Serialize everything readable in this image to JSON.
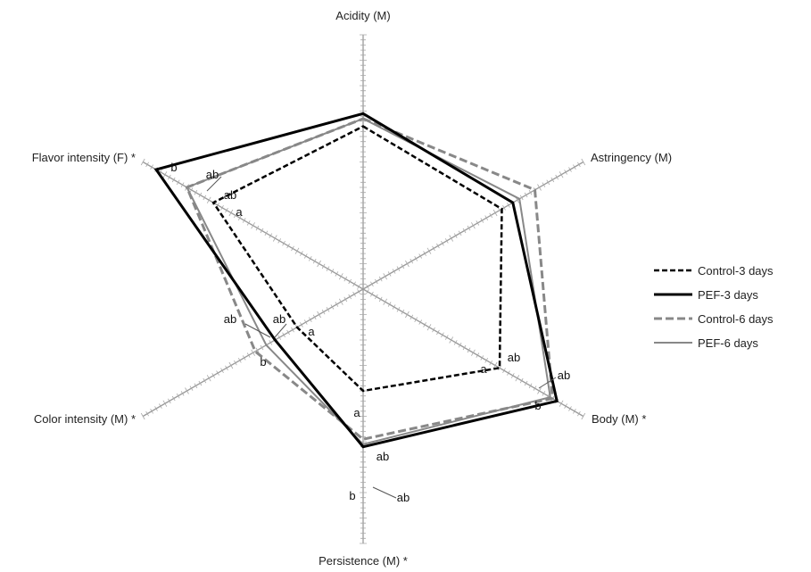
{
  "chart_data": {
    "type": "radar",
    "axes": [
      "Acidity (M)",
      "Astringency (M)",
      "Body (M) *",
      "Persistence (M) *",
      "Color intensity (M) *",
      "Flavor intensity (F) *"
    ],
    "range": [
      0,
      10
    ],
    "grid": false,
    "legend": "right",
    "series": [
      {
        "name": "Control-3 days",
        "values": [
          6.4,
          6.3,
          6.2,
          4.0,
          3.0,
          6.8
        ],
        "color": "#000000",
        "style": "dashed"
      },
      {
        "name": "PEF-3 days",
        "values": [
          6.9,
          6.8,
          8.8,
          6.2,
          4.0,
          9.4
        ],
        "color": "#000000",
        "style": "solid"
      },
      {
        "name": "Control-6 days",
        "values": [
          6.7,
          7.8,
          8.6,
          5.9,
          4.9,
          8.0
        ],
        "color": "#888888",
        "style": "dashed"
      },
      {
        "name": "PEF-6 days",
        "values": [
          6.7,
          7.1,
          8.5,
          6.1,
          4.4,
          8.0
        ],
        "color": "#888888",
        "style": "solid"
      }
    ],
    "annotations": [
      {
        "axis": "Flavor intensity (F) *",
        "label": "b"
      },
      {
        "axis": "Flavor intensity (F) *",
        "label": "ab"
      },
      {
        "axis": "Flavor intensity (F) *",
        "label": "ab"
      },
      {
        "axis": "Flavor intensity (F) *",
        "label": "a"
      },
      {
        "axis": "Color intensity (M) *",
        "label": "ab"
      },
      {
        "axis": "Color intensity (M) *",
        "label": "ab"
      },
      {
        "axis": "Color intensity (M) *",
        "label": "a"
      },
      {
        "axis": "Color intensity (M) *",
        "label": "b"
      },
      {
        "axis": "Body (M) *",
        "label": "a"
      },
      {
        "axis": "Body (M) *",
        "label": "ab"
      },
      {
        "axis": "Body (M) *",
        "label": "ab"
      },
      {
        "axis": "Body (M) *",
        "label": "b"
      },
      {
        "axis": "Persistence (M) *",
        "label": "a"
      },
      {
        "axis": "Persistence (M) *",
        "label": "ab"
      },
      {
        "axis": "Persistence (M) *",
        "label": "b"
      },
      {
        "axis": "Persistence (M) *",
        "label": "ab"
      }
    ]
  }
}
